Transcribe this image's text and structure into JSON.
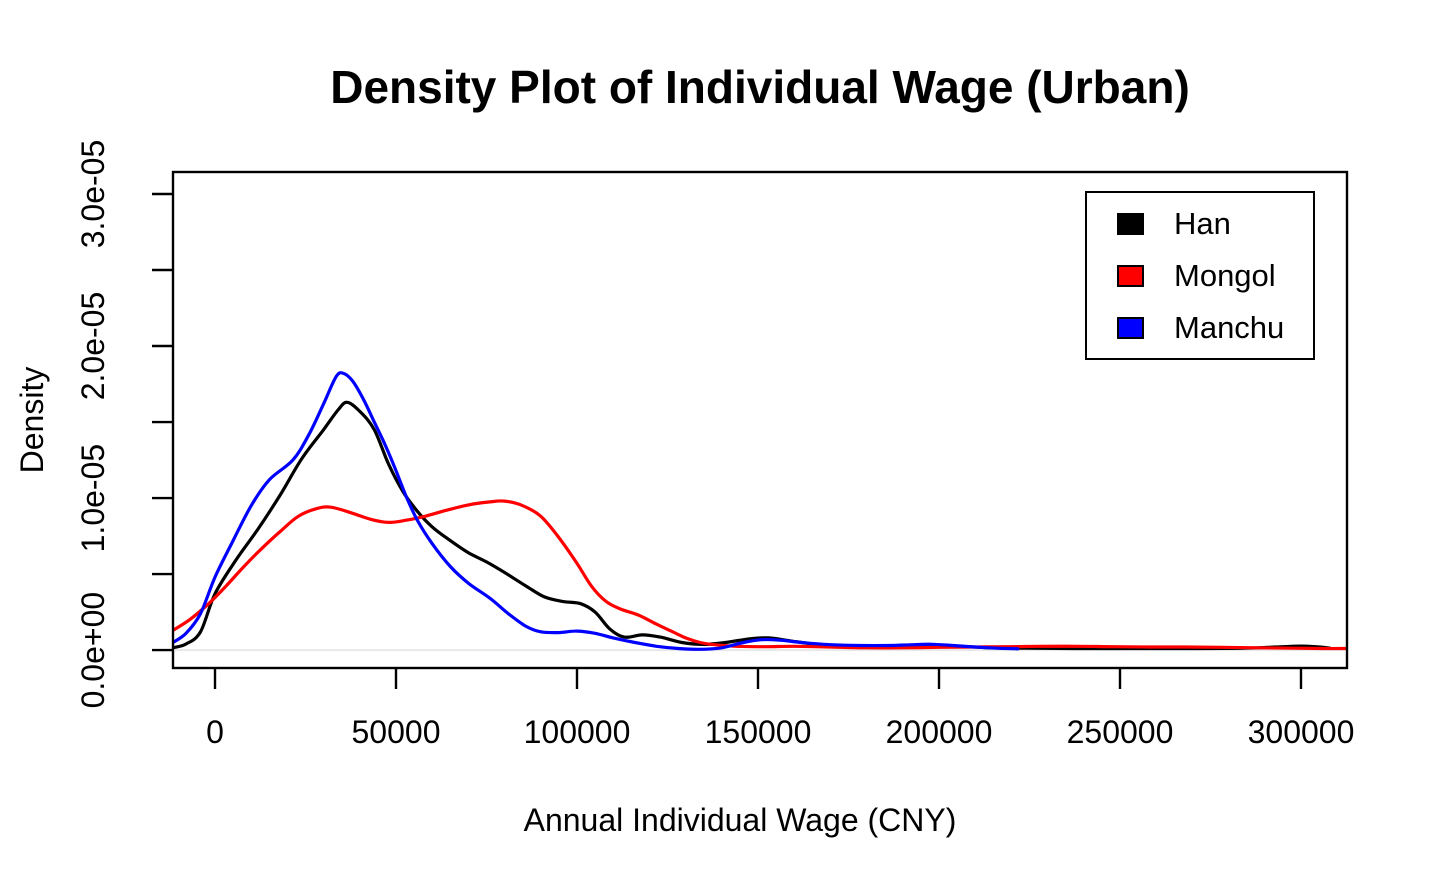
{
  "title": "Density Plot of Individual Wage (Urban)",
  "legend": {
    "items": [
      {
        "label": "Han",
        "color": "#000000"
      },
      {
        "label": "Mongol",
        "color": "#FF0000"
      },
      {
        "label": "Manchu",
        "color": "#0000FF"
      }
    ]
  },
  "colors": {
    "background": "#FFFFFF",
    "axis": "#000000",
    "zero_baseline": "#E8E8E8",
    "han": "#000000",
    "mongol": "#FF0000",
    "manchu": "#0000FF"
  },
  "chart_data": {
    "type": "line",
    "subtype": "kernel-density",
    "title": "Density Plot of Individual Wage (Urban)",
    "xlabel": "Annual Individual Wage (CNY)",
    "ylabel": "Density",
    "grid": false,
    "legend_position": "top-right",
    "xlim": [
      -11600,
      312700
    ],
    "ylim": [
      -1.18e-06,
      3.145e-05
    ],
    "x_ticks": [
      {
        "value": 0,
        "label": "0"
      },
      {
        "value": 50000,
        "label": "50000"
      },
      {
        "value": 100000,
        "label": "100000"
      },
      {
        "value": 150000,
        "label": "150000"
      },
      {
        "value": 200000,
        "label": "200000"
      },
      {
        "value": 250000,
        "label": "250000"
      },
      {
        "value": 300000,
        "label": "300000"
      }
    ],
    "y_ticks": [
      {
        "value": 0,
        "label": "0.0e+00"
      },
      {
        "value": 5e-06,
        "label": ""
      },
      {
        "value": 1e-05,
        "label": "1.0e-05"
      },
      {
        "value": 1.5e-05,
        "label": ""
      },
      {
        "value": 2e-05,
        "label": "2.0e-05"
      },
      {
        "value": 2.5e-05,
        "label": ""
      },
      {
        "value": 3e-05,
        "label": "3.0e-05"
      }
    ],
    "series": [
      {
        "name": "Han",
        "color": "#000000",
        "points": [
          [
            -11600,
            1.5e-07
          ],
          [
            -8000,
            4e-07
          ],
          [
            -4000,
            1.2e-06
          ],
          [
            0,
            3.7e-06
          ],
          [
            6000,
            6e-06
          ],
          [
            12000,
            8e-06
          ],
          [
            18000,
            1.02e-05
          ],
          [
            24000,
            1.26e-05
          ],
          [
            30000,
            1.45e-05
          ],
          [
            34000,
            1.58e-05
          ],
          [
            36500,
            1.63e-05
          ],
          [
            40000,
            1.57e-05
          ],
          [
            44000,
            1.45e-05
          ],
          [
            48000,
            1.22e-05
          ],
          [
            52000,
            1.04e-05
          ],
          [
            56000,
            9.1e-06
          ],
          [
            60000,
            8.1e-06
          ],
          [
            65000,
            7.2e-06
          ],
          [
            70000,
            6.4e-06
          ],
          [
            75000,
            5.8e-06
          ],
          [
            80000,
            5.1e-06
          ],
          [
            86000,
            4.2e-06
          ],
          [
            91000,
            3.5e-06
          ],
          [
            96000,
            3.2e-06
          ],
          [
            101000,
            3.05e-06
          ],
          [
            105000,
            2.5e-06
          ],
          [
            109000,
            1.4e-06
          ],
          [
            113000,
            8.5e-07
          ],
          [
            118000,
            1e-06
          ],
          [
            123000,
            8.5e-07
          ],
          [
            129000,
            5e-07
          ],
          [
            135000,
            3.7e-07
          ],
          [
            141000,
            5e-07
          ],
          [
            148000,
            7.5e-07
          ],
          [
            153000,
            8e-07
          ],
          [
            159000,
            6e-07
          ],
          [
            167000,
            3.5e-07
          ],
          [
            175000,
            2.5e-07
          ],
          [
            183000,
            2.5e-07
          ],
          [
            191000,
            3e-07
          ],
          [
            198000,
            3.2e-07
          ],
          [
            206000,
            2.5e-07
          ],
          [
            214000,
            1.5e-07
          ],
          [
            224000,
            1.2e-07
          ],
          [
            240000,
            1e-07
          ],
          [
            258000,
            1e-07
          ],
          [
            272000,
            1e-07
          ],
          [
            284000,
            1.2e-07
          ],
          [
            293000,
            2e-07
          ],
          [
            300000,
            2.6e-07
          ],
          [
            305000,
            2e-07
          ],
          [
            308000,
            1.2e-07
          ]
        ]
      },
      {
        "name": "Mongol",
        "color": "#FF0000",
        "points": [
          [
            -11600,
            1.3e-06
          ],
          [
            -7000,
            2e-06
          ],
          [
            -2000,
            3e-06
          ],
          [
            3000,
            4.2e-06
          ],
          [
            8000,
            5.5e-06
          ],
          [
            13000,
            6.7e-06
          ],
          [
            18000,
            7.8e-06
          ],
          [
            23000,
            8.8e-06
          ],
          [
            28000,
            9.3e-06
          ],
          [
            32000,
            9.4e-06
          ],
          [
            38000,
            9e-06
          ],
          [
            43000,
            8.6e-06
          ],
          [
            48000,
            8.4e-06
          ],
          [
            53000,
            8.55e-06
          ],
          [
            58000,
            8.8e-06
          ],
          [
            64000,
            9.2e-06
          ],
          [
            70000,
            9.55e-06
          ],
          [
            76000,
            9.75e-06
          ],
          [
            80000,
            9.8e-06
          ],
          [
            85000,
            9.5e-06
          ],
          [
            90000,
            8.8e-06
          ],
          [
            95000,
            7.4e-06
          ],
          [
            100000,
            5.7e-06
          ],
          [
            104000,
            4.2e-06
          ],
          [
            108000,
            3.2e-06
          ],
          [
            112000,
            2.7e-06
          ],
          [
            117000,
            2.3e-06
          ],
          [
            122000,
            1.7e-06
          ],
          [
            126000,
            1.25e-06
          ],
          [
            130000,
            8e-07
          ],
          [
            134000,
            5e-07
          ],
          [
            138000,
            3.5e-07
          ],
          [
            144000,
            2.5e-07
          ],
          [
            152000,
            2.2e-07
          ],
          [
            160000,
            2.5e-07
          ],
          [
            170000,
            2e-07
          ],
          [
            180000,
            1.5e-07
          ],
          [
            190000,
            1.5e-07
          ],
          [
            200000,
            1.8e-07
          ],
          [
            210000,
            2e-07
          ],
          [
            220000,
            2.2e-07
          ],
          [
            228000,
            2.5e-07
          ],
          [
            238000,
            2.5e-07
          ],
          [
            248000,
            2.2e-07
          ],
          [
            258000,
            2e-07
          ],
          [
            268000,
            2e-07
          ],
          [
            278000,
            1.8e-07
          ],
          [
            288000,
            1.5e-07
          ],
          [
            298000,
            1.2e-07
          ],
          [
            306000,
            1e-07
          ],
          [
            312700,
            1e-07
          ]
        ]
      },
      {
        "name": "Manchu",
        "color": "#0000FF",
        "points": [
          [
            -11600,
            5e-07
          ],
          [
            -8000,
            1.1e-06
          ],
          [
            -4000,
            2.4e-06
          ],
          [
            0,
            4.8e-06
          ],
          [
            5000,
            7.2e-06
          ],
          [
            10000,
            9.5e-06
          ],
          [
            15000,
            1.12e-05
          ],
          [
            21500,
            1.25e-05
          ],
          [
            26000,
            1.42e-05
          ],
          [
            30000,
            1.62e-05
          ],
          [
            33500,
            1.8e-05
          ],
          [
            35500,
            1.82e-05
          ],
          [
            38000,
            1.77e-05
          ],
          [
            41000,
            1.65e-05
          ],
          [
            44000,
            1.5e-05
          ],
          [
            47000,
            1.35e-05
          ],
          [
            50000,
            1.18e-05
          ],
          [
            53000,
            1e-05
          ],
          [
            56000,
            8.5e-06
          ],
          [
            60000,
            7e-06
          ],
          [
            65000,
            5.5e-06
          ],
          [
            70000,
            4.4e-06
          ],
          [
            76000,
            3.4e-06
          ],
          [
            81000,
            2.4e-06
          ],
          [
            86000,
            1.55e-06
          ],
          [
            90000,
            1.2e-06
          ],
          [
            95000,
            1.15e-06
          ],
          [
            100000,
            1.25e-06
          ],
          [
            105000,
            1.1e-06
          ],
          [
            110000,
            8e-07
          ],
          [
            116000,
            5e-07
          ],
          [
            122000,
            2.5e-07
          ],
          [
            128000,
            1e-07
          ],
          [
            134000,
            5e-08
          ],
          [
            140000,
            1.5e-07
          ],
          [
            146000,
            5e-07
          ],
          [
            151000,
            6.8e-07
          ],
          [
            156000,
            6.5e-07
          ],
          [
            162000,
            5e-07
          ],
          [
            170000,
            3.5e-07
          ],
          [
            178000,
            3e-07
          ],
          [
            186000,
            3e-07
          ],
          [
            193000,
            3.5e-07
          ],
          [
            198000,
            3.8e-07
          ],
          [
            204000,
            3e-07
          ],
          [
            210000,
            2e-07
          ],
          [
            216000,
            1.2e-07
          ],
          [
            221800,
            8e-08
          ]
        ]
      }
    ]
  }
}
